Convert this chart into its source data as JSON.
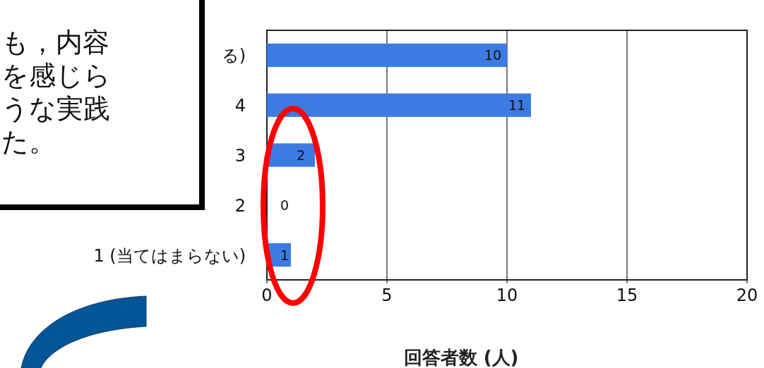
{
  "chart_data": {
    "type": "bar",
    "orientation": "horizontal",
    "xlabel": "回答者数 (人)",
    "categories": [
      "る)",
      "4",
      "3",
      "2",
      "1 (当てはまらない)"
    ],
    "values": [
      10,
      11,
      2,
      0,
      1
    ],
    "color": "#3d7be3",
    "xlim": [
      0,
      20
    ],
    "xticks": [
      0,
      5,
      10,
      15,
      20
    ],
    "grid": "x",
    "data_labels": true,
    "annotations": [
      "も，内容",
      "を感じら",
      "うな実践",
      "た。"
    ]
  }
}
